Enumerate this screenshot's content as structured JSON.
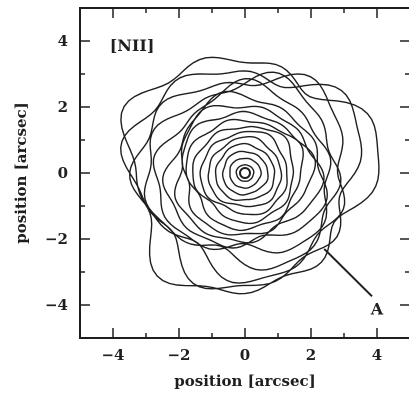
{
  "chart_data": {
    "type": "contour",
    "panel_label": "[NII]",
    "xlabel": "position [arcsec]",
    "ylabel": "position [arcsec]",
    "xlim": [
      -5.0,
      5.0
    ],
    "ylim": [
      -5.0,
      5.0
    ],
    "xticks": [
      -4,
      -2,
      0,
      2,
      4
    ],
    "yticks": [
      -4,
      -2,
      0,
      2,
      4
    ],
    "xtick_labels": [
      "−4",
      "−2",
      "0",
      "2",
      "4"
    ],
    "ytick_labels": [
      "−4",
      "−2",
      "0",
      "2",
      "4"
    ],
    "center": [
      0.0,
      0.0
    ],
    "contour_radii": [
      0.25,
      0.45,
      0.65,
      0.85,
      1.05,
      1.25,
      1.45,
      1.65,
      1.85,
      2.05,
      2.25,
      2.5,
      2.75,
      3.0,
      3.25,
      3.5
    ],
    "annotation": {
      "label": "A",
      "points_to": [
        2.4,
        -2.3
      ],
      "label_at": [
        4.0,
        -4.1
      ]
    },
    "grid": false,
    "line_color": "#1f1f1f"
  }
}
